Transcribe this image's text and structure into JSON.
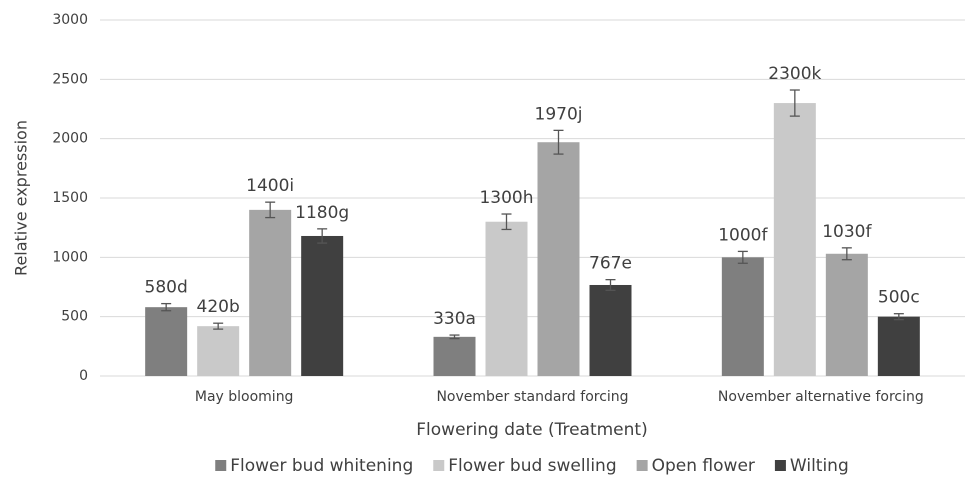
{
  "chart_data": {
    "type": "bar",
    "ylabel": "Relative expression",
    "xlabel": "Flowering date (Treatment)",
    "categories": [
      "May blooming",
      "November standard forcing",
      "November alternative forcing"
    ],
    "series": [
      {
        "name": "Flower bud whitening",
        "color": "#7f7f7f",
        "values": [
          580,
          330,
          1000
        ],
        "value_labels": [
          "580d",
          "330a",
          "1000f"
        ],
        "errors": [
          30,
          15,
          50
        ]
      },
      {
        "name": "Flower bud swelling",
        "color": "#c9c9c9",
        "values": [
          420,
          1300,
          2300
        ],
        "value_labels": [
          "420b",
          "1300h",
          "2300k"
        ],
        "errors": [
          25,
          65,
          110
        ]
      },
      {
        "name": "Open flower",
        "color": "#a5a5a5",
        "values": [
          1400,
          1970,
          1030
        ],
        "value_labels": [
          "1400i",
          "1970j",
          "1030f"
        ],
        "errors": [
          65,
          100,
          50
        ]
      },
      {
        "name": "Wilting",
        "color": "#404040",
        "values": [
          1180,
          767,
          500
        ],
        "value_labels": [
          "1180g",
          "767e",
          "500c"
        ],
        "errors": [
          60,
          45,
          25
        ]
      }
    ],
    "ylim": [
      0,
      3000
    ],
    "yticks": [
      0,
      500,
      1000,
      1500,
      2000,
      2500,
      3000
    ],
    "grid": true,
    "legend": "bottom"
  }
}
